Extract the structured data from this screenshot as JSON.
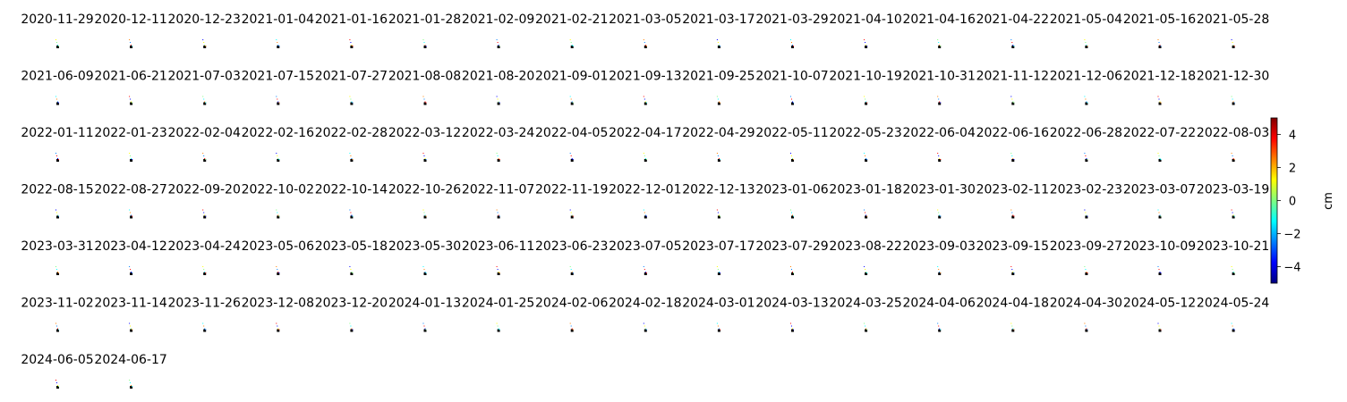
{
  "chart_data": {
    "type": "heatmap",
    "grid": false,
    "layout": {
      "rows": 7,
      "cols": 17
    },
    "dates": [
      "2020-11-29",
      "2020-12-11",
      "2020-12-23",
      "2021-01-04",
      "2021-01-16",
      "2021-01-28",
      "2021-02-09",
      "2021-02-21",
      "2021-03-05",
      "2021-03-17",
      "2021-03-29",
      "2021-04-10",
      "2021-04-16",
      "2021-04-22",
      "2021-05-04",
      "2021-05-16",
      "2021-05-28",
      "2021-06-09",
      "2021-06-21",
      "2021-07-03",
      "2021-07-15",
      "2021-07-27",
      "2021-08-08",
      "2021-08-20",
      "2021-09-01",
      "2021-09-13",
      "2021-09-25",
      "2021-10-07",
      "2021-10-19",
      "2021-10-31",
      "2021-11-12",
      "2021-12-06",
      "2021-12-18",
      "2021-12-30",
      "2022-01-11",
      "2022-01-23",
      "2022-02-04",
      "2022-02-16",
      "2022-02-28",
      "2022-03-12",
      "2022-03-24",
      "2022-04-05",
      "2022-04-17",
      "2022-04-29",
      "2022-05-11",
      "2022-05-23",
      "2022-06-04",
      "2022-06-16",
      "2022-06-28",
      "2022-07-22",
      "2022-08-03",
      "2022-08-15",
      "2022-08-27",
      "2022-09-20",
      "2022-10-02",
      "2022-10-14",
      "2022-10-26",
      "2022-11-07",
      "2022-11-19",
      "2022-12-01",
      "2022-12-13",
      "2023-01-06",
      "2023-01-18",
      "2023-01-30",
      "2023-02-11",
      "2023-02-23",
      "2023-03-07",
      "2023-03-19",
      "2023-03-31",
      "2023-04-12",
      "2023-04-24",
      "2023-05-06",
      "2023-05-18",
      "2023-05-30",
      "2023-06-11",
      "2023-06-23",
      "2023-07-05",
      "2023-07-17",
      "2023-07-29",
      "2023-08-22",
      "2023-09-03",
      "2023-09-15",
      "2023-09-27",
      "2023-10-09",
      "2023-10-21",
      "2023-11-02",
      "2023-11-14",
      "2023-11-26",
      "2023-12-08",
      "2023-12-20",
      "2024-01-13",
      "2024-01-25",
      "2024-02-06",
      "2024-02-18",
      "2024-03-01",
      "2024-03-13",
      "2024-03-25",
      "2024-04-06",
      "2024-04-18",
      "2024-04-30",
      "2024-05-12",
      "2024-05-24",
      "2024-06-05",
      "2024-06-17"
    ],
    "colorbar": {
      "label": "cm",
      "vmin": -5,
      "vmax": 5,
      "ticks": [
        -4,
        -2,
        0,
        2,
        4
      ],
      "tick_labels": [
        "−4",
        "−2",
        "0",
        "2",
        "4"
      ],
      "colormap": "jet",
      "colors": [
        "#00007f",
        "#0000ff",
        "#007fff",
        "#00ffff",
        "#7fff7f",
        "#ffff00",
        "#ff7f00",
        "#ff0000",
        "#7f0000"
      ]
    },
    "point_colors": [
      "#000000",
      "#ffff00",
      "#7fff7f",
      "#00ffff",
      "#ff7f00",
      "#007fff",
      "#ff0000",
      "#0000ff"
    ]
  }
}
